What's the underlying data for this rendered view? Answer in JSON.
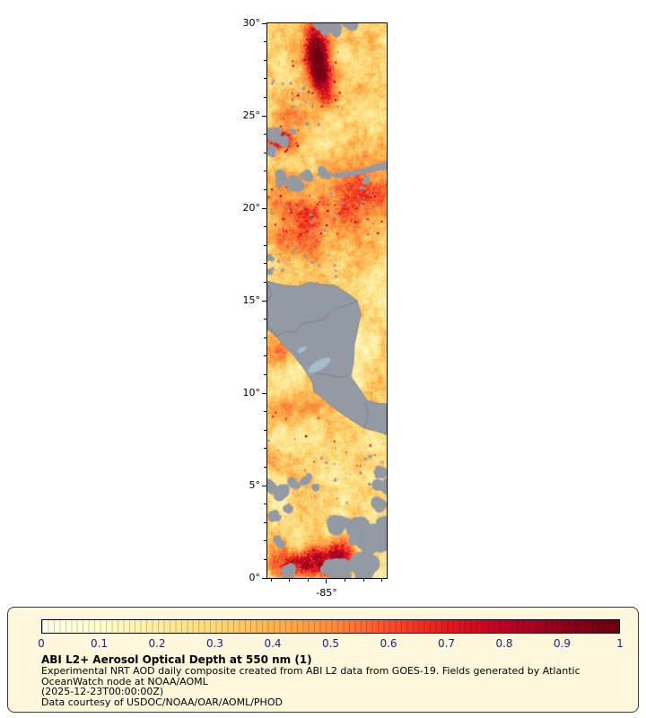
{
  "map": {
    "y_axis_ticks": [
      {
        "label": "30°",
        "value": 30
      },
      {
        "label": "25°",
        "value": 25
      },
      {
        "label": "20°",
        "value": 20
      },
      {
        "label": "15°",
        "value": 15
      },
      {
        "label": "10°",
        "value": 10
      },
      {
        "label": "5°",
        "value": 5
      },
      {
        "label": "0°",
        "value": 0
      }
    ],
    "x_axis_ticks": [
      {
        "label": "-85°",
        "value": -85
      }
    ],
    "no_data_color": "#939aa3",
    "river_color": "#7fa3c2",
    "border_color": "#6e7680",
    "lake_color": "#a9bcc9"
  },
  "legend": {
    "background": "#fff8dc",
    "colorbar": {
      "tick_labels": [
        "0",
        "0.1",
        "0.2",
        "0.3",
        "0.4",
        "0.5",
        "0.6",
        "0.7",
        "0.8",
        "0.9",
        "1"
      ],
      "colors": [
        "#ffffeb",
        "#ffffcc",
        "#ffeda0",
        "#fed976",
        "#feb24c",
        "#fd8d3c",
        "#fc4e2a",
        "#e31a1c",
        "#bd0026",
        "#90001c",
        "#6b0011"
      ]
    },
    "title": "ABI L2+ Aerosol Optical Depth at 550 nm (1)",
    "description_lines": [
      "Experimental NRT AOD daily composite created from ABI L2 data from GOES-19. Fields generated by Atlantic",
      "OceanWatch node at NOAA/AOML"
    ],
    "timestamp": "(2025-12-23T00:00:00Z)",
    "credit": "Data courtesy of USDOC/NOAA/OAR/AOML/PHOD"
  }
}
